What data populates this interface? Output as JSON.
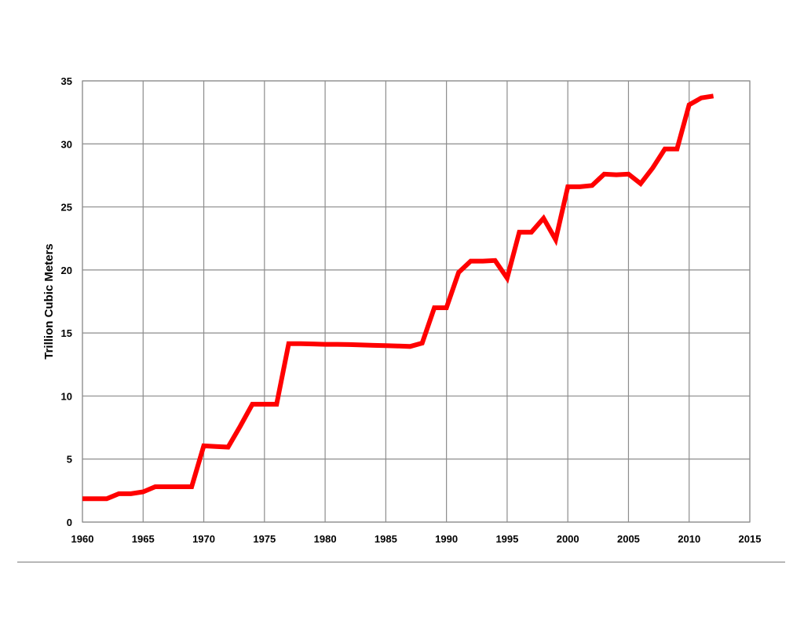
{
  "chart_data": {
    "type": "line",
    "title": "",
    "xlabel": "",
    "ylabel": "Trillion Cubic Meters",
    "xlim": [
      1960,
      2015
    ],
    "ylim": [
      0,
      35
    ],
    "x_ticks": [
      "1960",
      "1965",
      "1970",
      "1975",
      "1980",
      "1985",
      "1990",
      "1995",
      "2000",
      "2005",
      "2010",
      "2015"
    ],
    "y_ticks": [
      "0",
      "5",
      "10",
      "15",
      "20",
      "25",
      "30",
      "35"
    ],
    "grid": true,
    "legend": "none",
    "series": [
      {
        "color": "#ff0000",
        "x": [
          1960,
          1961,
          1962,
          1963,
          1964,
          1965,
          1966,
          1967,
          1968,
          1969,
          1970,
          1971,
          1972,
          1973,
          1974,
          1975,
          1976,
          1977,
          1978,
          1979,
          1980,
          1981,
          1982,
          1983,
          1984,
          1985,
          1986,
          1987,
          1988,
          1989,
          1990,
          1991,
          1992,
          1993,
          1994,
          1995,
          1996,
          1997,
          1998,
          1999,
          2000,
          2001,
          2002,
          2003,
          2004,
          2005,
          2006,
          2007,
          2008,
          2009,
          2010,
          2011,
          2012
        ],
        "y": [
          1.85,
          1.85,
          1.85,
          2.25,
          2.25,
          2.4,
          2.8,
          2.8,
          2.8,
          2.8,
          6.05,
          6.0,
          5.95,
          7.6,
          9.35,
          9.35,
          9.35,
          14.15,
          14.15,
          14.13,
          14.1,
          14.1,
          14.08,
          14.05,
          14.02,
          14.0,
          13.97,
          13.93,
          14.2,
          17.0,
          17.0,
          19.8,
          20.7,
          20.7,
          20.75,
          19.35,
          23.0,
          23.0,
          24.1,
          22.4,
          26.6,
          26.6,
          26.7,
          27.6,
          27.55,
          27.6,
          26.85,
          28.1,
          29.6,
          29.6,
          33.1,
          33.65,
          33.8
        ]
      }
    ]
  }
}
